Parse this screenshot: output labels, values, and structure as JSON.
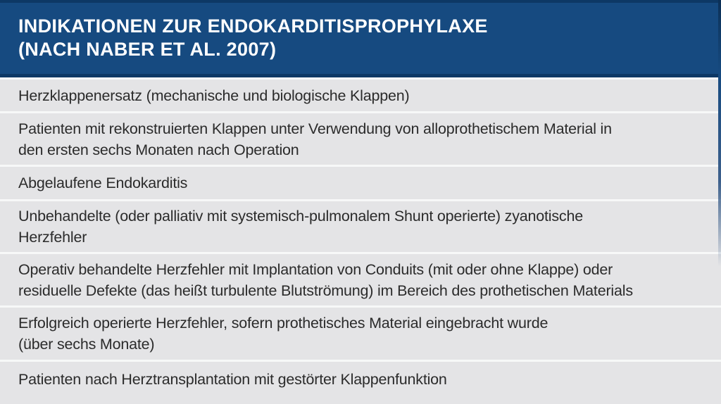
{
  "header": {
    "title_line1": "INDIKATIONEN ZUR ENDOKARDITISPROPHYLAXE",
    "title_line2": "(NACH NABER ET AL. 2007)"
  },
  "rows": [
    {
      "lines": [
        "Herzklappenersatz (mechanische und biologische Klappen)"
      ]
    },
    {
      "lines": [
        "Patienten mit rekonstruierten Klappen unter Verwendung von alloprothetischem Material in",
        "den ersten sechs Monaten nach Operation"
      ]
    },
    {
      "lines": [
        "Abgelaufene Endokarditis"
      ]
    },
    {
      "lines": [
        "Unbehandelte (oder palliativ mit systemisch-pulmonalem Shunt operierte) zyanotische",
        "Herzfehler"
      ]
    },
    {
      "lines": [
        "Operativ behandelte Herzfehler mit Implantation von Conduits (mit oder ohne Klappe) oder",
        "residuelle Defekte (das heißt turbulente Blutströmung) im Bereich des prothetischen Materials"
      ]
    },
    {
      "lines": [
        "Erfolgreich operierte Herzfehler, sofern prothetisches Material eingebracht wurde",
        "(über sechs Monate)"
      ]
    },
    {
      "lines": [
        "Patienten nach Herztransplantation mit gestörter Klappenfunktion"
      ]
    }
  ],
  "colors": {
    "header_bg": "#164a80",
    "header_edge": "#0d3865",
    "row_bg": "#e4e4e6",
    "separator": "#f7f8f8",
    "text": "#2b2b2b",
    "title_text": "#ffffff"
  }
}
